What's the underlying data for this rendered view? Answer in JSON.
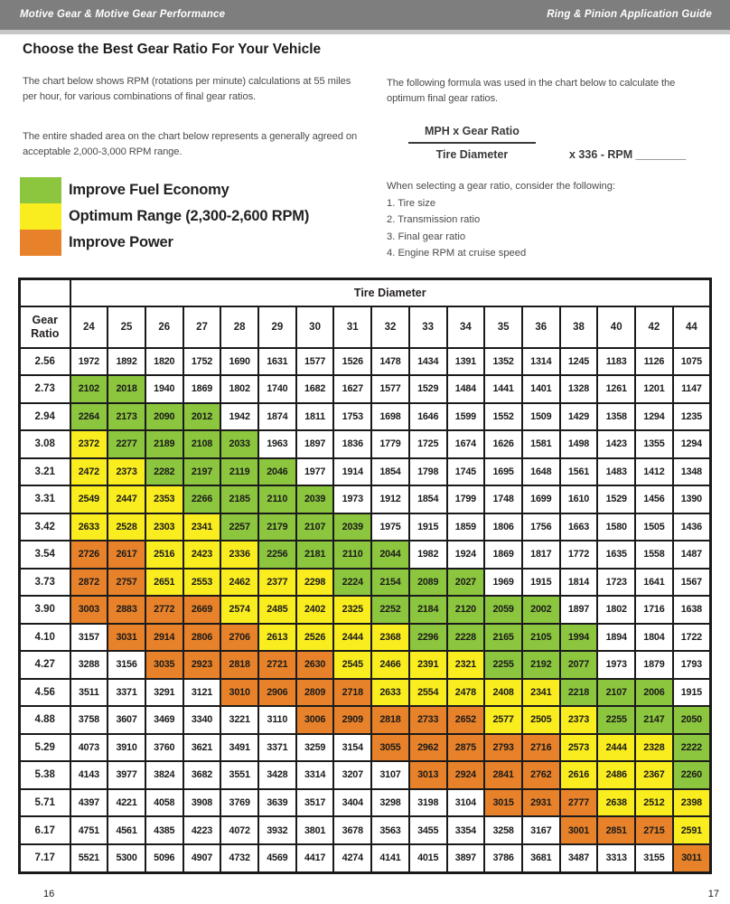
{
  "top_bar": {
    "left": "Motive Gear & Motive Gear Performance",
    "right": "Ring & Pinion Application Guide"
  },
  "page": {
    "title": "Choose the Best Gear Ratio For Your Vehicle",
    "intro_1": "The chart below shows RPM (rotations per minute) calculations at 55 miles per hour, for various combinations of final gear ratios.",
    "intro_2": "The entire shaded area on the chart below represents a generally agreed on acceptable 2,000-3,000 RPM range.",
    "formula_intro": "The following formula was used in the chart below to calculate the optimum final gear ratios.",
    "formula": {
      "numerator": "MPH x Gear Ratio",
      "denominator": "Tire Diameter",
      "suffix": "x 336 - RPM ________"
    },
    "considerations_title": "When selecting a gear ratio, consider the following:",
    "considerations": [
      "1. Tire size",
      "2. Transmission ratio",
      "3. Final gear ratio",
      "4. Engine RPM at cruise speed"
    ],
    "page_number_left": "16",
    "page_number_right": "17"
  },
  "legend": [
    {
      "label": "Improve Fuel Economy",
      "color": "#8cc63e"
    },
    {
      "label": "Optimum Range (2,300-2,600 RPM)",
      "color": "#faed1f"
    },
    {
      "label": "Improve Power",
      "color": "#e8822a"
    }
  ],
  "chart_data": {
    "type": "table",
    "title": "Tire Diameter",
    "row_header": "Gear Ratio",
    "note": "RPM at 55 MPH; W=white (outside 2,000-3,000 band), G=green improve fuel economy, Y=yellow optimum, O=orange improve power",
    "columns": [
      24,
      25,
      26,
      27,
      28,
      29,
      30,
      31,
      32,
      33,
      34,
      35,
      36,
      38,
      40,
      42,
      44
    ],
    "color_key": {
      "W": "#ffffff",
      "G": "#8cc63e",
      "Y": "#faed1f",
      "O": "#e8822a"
    },
    "rows": [
      {
        "ratio": "2.56",
        "values": [
          1972,
          1892,
          1820,
          1752,
          1690,
          1631,
          1577,
          1526,
          1478,
          1434,
          1391,
          1352,
          1314,
          1245,
          1183,
          1126,
          1075
        ],
        "colors": "WWWWWWWWWWWWWWWWW"
      },
      {
        "ratio": "2.73",
        "values": [
          2102,
          2018,
          1940,
          1869,
          1802,
          1740,
          1682,
          1627,
          1577,
          1529,
          1484,
          1441,
          1401,
          1328,
          1261,
          1201,
          1147
        ],
        "colors": "GGWWWWWWWWWWWWWWW"
      },
      {
        "ratio": "2.94",
        "values": [
          2264,
          2173,
          2090,
          2012,
          1942,
          1874,
          1811,
          1753,
          1698,
          1646,
          1599,
          1552,
          1509,
          1429,
          1358,
          1294,
          1235
        ],
        "colors": "GGGGWWWWWWWWWWWWW"
      },
      {
        "ratio": "3.08",
        "values": [
          2372,
          2277,
          2189,
          2108,
          2033,
          1963,
          1897,
          1836,
          1779,
          1725,
          1674,
          1626,
          1581,
          1498,
          1423,
          1355,
          1294
        ],
        "colors": "YGGGGWWWWWWWWWWWW"
      },
      {
        "ratio": "3.21",
        "values": [
          2472,
          2373,
          2282,
          2197,
          2119,
          2046,
          1977,
          1914,
          1854,
          1798,
          1745,
          1695,
          1648,
          1561,
          1483,
          1412,
          1348
        ],
        "colors": "YYGGGGWWWWWWWWWWW"
      },
      {
        "ratio": "3.31",
        "values": [
          2549,
          2447,
          2353,
          2266,
          2185,
          2110,
          2039,
          1973,
          1912,
          1854,
          1799,
          1748,
          1699,
          1610,
          1529,
          1456,
          1390
        ],
        "colors": "YYYGGGGWWWWWWWWWW"
      },
      {
        "ratio": "3.42",
        "values": [
          2633,
          2528,
          2303,
          2341,
          2257,
          2179,
          2107,
          2039,
          1975,
          1915,
          1859,
          1806,
          1756,
          1663,
          1580,
          1505,
          1436
        ],
        "colors": "YYYYGGGGWWWWWWWWW"
      },
      {
        "ratio": "3.54",
        "values": [
          2726,
          2617,
          2516,
          2423,
          2336,
          2256,
          2181,
          2110,
          2044,
          1982,
          1924,
          1869,
          1817,
          1772,
          1635,
          1558,
          1487
        ],
        "colors": "OOYYYGGGGWWWWWWWW"
      },
      {
        "ratio": "3.73",
        "values": [
          2872,
          2757,
          2651,
          2553,
          2462,
          2377,
          2298,
          2224,
          2154,
          2089,
          2027,
          1969,
          1915,
          1814,
          1723,
          1641,
          1567
        ],
        "colors": "OOYYYYYGGGGWWWWWW"
      },
      {
        "ratio": "3.90",
        "values": [
          3003,
          2883,
          2772,
          2669,
          2574,
          2485,
          2402,
          2325,
          2252,
          2184,
          2120,
          2059,
          2002,
          1897,
          1802,
          1716,
          1638
        ],
        "colors": "OOOOYYYYGGGGGWWWW"
      },
      {
        "ratio": "4.10",
        "values": [
          3157,
          3031,
          2914,
          2806,
          2706,
          2613,
          2526,
          2444,
          2368,
          2296,
          2228,
          2165,
          2105,
          1994,
          1894,
          1804,
          1722
        ],
        "colors": "WOOOOYYYYGGGGGWWW"
      },
      {
        "ratio": "4.27",
        "values": [
          3288,
          3156,
          3035,
          2923,
          2818,
          2721,
          2630,
          2545,
          2466,
          2391,
          2321,
          2255,
          2192,
          2077,
          1973,
          1879,
          1793
        ],
        "colors": "WWOOOOOYYYYGGGWWW"
      },
      {
        "ratio": "4.56",
        "values": [
          3511,
          3371,
          3291,
          3121,
          3010,
          2906,
          2809,
          2718,
          2633,
          2554,
          2478,
          2408,
          2341,
          2218,
          2107,
          2006,
          1915
        ],
        "colors": "WWWWOOOOYYYYYGGGW"
      },
      {
        "ratio": "4.88",
        "values": [
          3758,
          3607,
          3469,
          3340,
          3221,
          3110,
          3006,
          2909,
          2818,
          2733,
          2652,
          2577,
          2505,
          2373,
          2255,
          2147,
          2050
        ],
        "colors": "WWWWWWOOOOOYYYGGG"
      },
      {
        "ratio": "5.29",
        "values": [
          4073,
          3910,
          3760,
          3621,
          3491,
          3371,
          3259,
          3154,
          3055,
          2962,
          2875,
          2793,
          2716,
          2573,
          2444,
          2328,
          2222
        ],
        "colors": "WWWWWWWWOOOOOYYYG"
      },
      {
        "ratio": "5.38",
        "values": [
          4143,
          3977,
          3824,
          3682,
          3551,
          3428,
          3314,
          3207,
          3107,
          3013,
          2924,
          2841,
          2762,
          2616,
          2486,
          2367,
          2260
        ],
        "colors": "WWWWWWWWWOOOOYYYG"
      },
      {
        "ratio": "5.71",
        "values": [
          4397,
          4221,
          4058,
          3908,
          3769,
          3639,
          3517,
          3404,
          3298,
          3198,
          3104,
          3015,
          2931,
          2777,
          2638,
          2512,
          2398
        ],
        "colors": "WWWWWWWWWWWOOOYYY"
      },
      {
        "ratio": "6.17",
        "values": [
          4751,
          4561,
          4385,
          4223,
          4072,
          3932,
          3801,
          3678,
          3563,
          3455,
          3354,
          3258,
          3167,
          3001,
          2851,
          2715,
          2591
        ],
        "colors": "WWWWWWWWWWWWWOOOY"
      },
      {
        "ratio": "7.17",
        "values": [
          5521,
          5300,
          5096,
          4907,
          4732,
          4569,
          4417,
          4274,
          4141,
          4015,
          3897,
          3786,
          3681,
          3487,
          3313,
          3155,
          3011
        ],
        "colors": "WWWWWWWWWWWWWWWWO"
      }
    ]
  }
}
